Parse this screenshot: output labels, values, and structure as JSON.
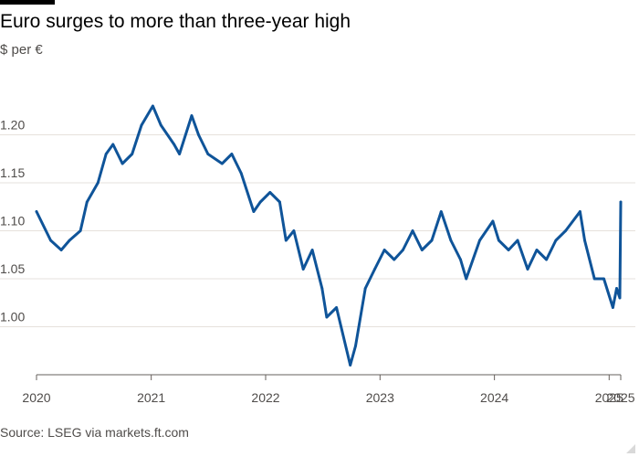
{
  "header": {
    "title": "Euro surges to more than three-year high",
    "subtitle": "$ per €"
  },
  "footer": {
    "source": "Source: LSEG via markets.ft.com"
  },
  "colors": {
    "line": "#0f5499",
    "grid": "#e6e1dc",
    "axis": "#66605c",
    "top_bar": "#000000"
  },
  "chart_data": {
    "type": "line",
    "title": "Euro surges to more than three-year high",
    "ylabel": "$ per €",
    "xlabel": "",
    "xlim": [
      "2020-01-01",
      "2025-02-07"
    ],
    "ylim": [
      0.95,
      1.25
    ],
    "y_ticks": [
      {
        "value": 1.0,
        "label": "1.00"
      },
      {
        "value": 1.05,
        "label": "1.05"
      },
      {
        "value": 1.1,
        "label": "1.10"
      },
      {
        "value": 1.15,
        "label": "1.15"
      },
      {
        "value": 1.2,
        "label": "1.20"
      }
    ],
    "x_ticks": [
      {
        "value": "2020-01-01",
        "label": "2020"
      },
      {
        "value": "2021-01-01",
        "label": "2021"
      },
      {
        "value": "2022-01-01",
        "label": "2022"
      },
      {
        "value": "2023-01-01",
        "label": "2023"
      },
      {
        "value": "2024-01-01",
        "label": "2024"
      },
      {
        "value": "2025-01-01",
        "label": "2025"
      },
      {
        "value": "2025-02-07",
        "label": "2025"
      }
    ],
    "grid": true,
    "series": [
      {
        "x": [
          "2020-01-01",
          "2020-02-15",
          "2020-03-20",
          "2020-04-15",
          "2020-05-20",
          "2020-06-10",
          "2020-07-15",
          "2020-08-10",
          "2020-09-01",
          "2020-10-01",
          "2020-11-01",
          "2020-12-01",
          "2021-01-06",
          "2021-02-01",
          "2021-03-15",
          "2021-04-01",
          "2021-05-10",
          "2021-06-01",
          "2021-07-01",
          "2021-08-15",
          "2021-09-15",
          "2021-10-15",
          "2021-11-24",
          "2021-12-15",
          "2022-01-15",
          "2022-02-15",
          "2022-03-07",
          "2022-04-01",
          "2022-05-01",
          "2022-05-30",
          "2022-06-30",
          "2022-07-15",
          "2022-08-15",
          "2022-09-28",
          "2022-10-15",
          "2022-11-15",
          "2022-12-15",
          "2023-01-15",
          "2023-02-15",
          "2023-03-15",
          "2023-04-15",
          "2023-05-15",
          "2023-06-15",
          "2023-07-15",
          "2023-08-15",
          "2023-09-15",
          "2023-10-03",
          "2023-11-15",
          "2023-12-27",
          "2024-01-15",
          "2024-02-15",
          "2024-03-15",
          "2024-04-16",
          "2024-05-15",
          "2024-06-15",
          "2024-07-15",
          "2024-08-15",
          "2024-09-30",
          "2024-10-15",
          "2024-11-15",
          "2024-12-15",
          "2025-01-13",
          "2025-01-25",
          "2025-02-04",
          "2025-02-07"
        ],
        "y": [
          1.12,
          1.09,
          1.08,
          1.09,
          1.1,
          1.13,
          1.15,
          1.18,
          1.19,
          1.17,
          1.18,
          1.21,
          1.23,
          1.21,
          1.19,
          1.18,
          1.22,
          1.2,
          1.18,
          1.17,
          1.18,
          1.16,
          1.12,
          1.13,
          1.14,
          1.13,
          1.09,
          1.1,
          1.06,
          1.08,
          1.04,
          1.01,
          1.02,
          0.96,
          0.98,
          1.04,
          1.06,
          1.08,
          1.07,
          1.08,
          1.1,
          1.08,
          1.09,
          1.12,
          1.09,
          1.07,
          1.05,
          1.09,
          1.11,
          1.09,
          1.08,
          1.09,
          1.06,
          1.08,
          1.07,
          1.09,
          1.1,
          1.12,
          1.09,
          1.05,
          1.05,
          1.02,
          1.04,
          1.03,
          1.13
        ]
      }
    ]
  }
}
